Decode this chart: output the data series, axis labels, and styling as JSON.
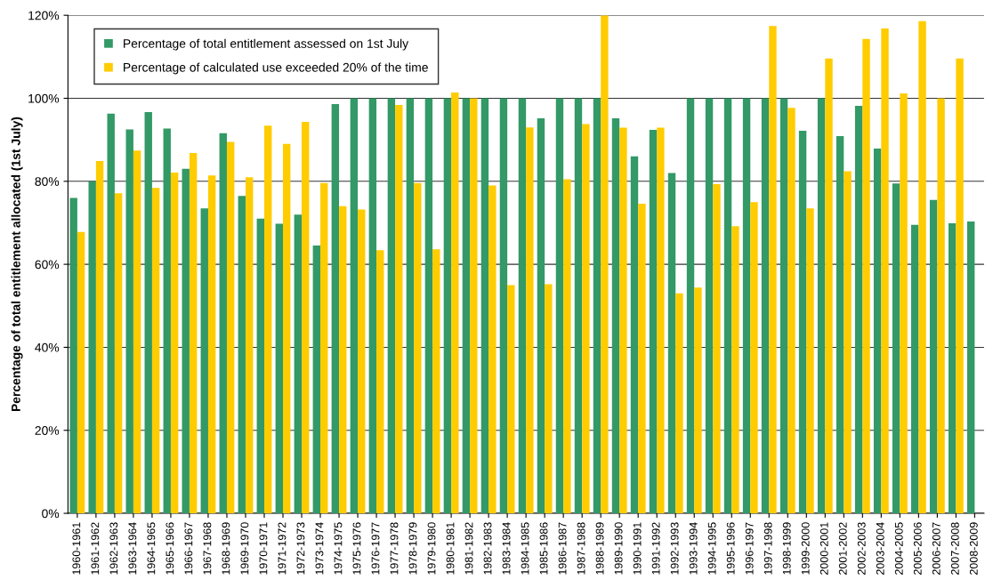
{
  "chart_data": {
    "type": "bar",
    "ylabel": "Percentage of total entitlement allocated (1st July)",
    "categories": [
      "1960-1961",
      "1961-1962",
      "1962-1963",
      "1963-1964",
      "1964-1965",
      "1965-1966",
      "1966-1967",
      "1967-1968",
      "1968-1969",
      "1969-1970",
      "1970-1971",
      "1971-1972",
      "1972-1973",
      "1973-1974",
      "1974-1975",
      "1975-1976",
      "1976-1977",
      "1977-1978",
      "1978-1979",
      "1979-1980",
      "1980-1981",
      "1981-1982",
      "1982-1983",
      "1983-1984",
      "1984-1985",
      "1985-1986",
      "1986-1987",
      "1987-1988",
      "1988-1989",
      "1989-1990",
      "1990-1991",
      "1991-1992",
      "1992-1993",
      "1993-1994",
      "1994-1995",
      "1995-1996",
      "1996-1997",
      "1997-1998",
      "1998-1999",
      "1999-2000",
      "2000-2001",
      "2001-2002",
      "2002-2003",
      "2003-2004",
      "2004-2005",
      "2005-2006",
      "2006-2007",
      "2007-2008",
      "2008-2009"
    ],
    "series": [
      {
        "name": "Percentage of total entitlement assessed on 1st July",
        "color": "#339966",
        "values": [
          76,
          80,
          96.3,
          92.5,
          96.7,
          92.7,
          83,
          73.5,
          91.6,
          76.5,
          71,
          69.8,
          72,
          64.5,
          98.6,
          100,
          100,
          100,
          100,
          100,
          100,
          100,
          100,
          100,
          100,
          95.2,
          100,
          100,
          100,
          95.2,
          86,
          92.4,
          82,
          100,
          100,
          100,
          100,
          100,
          100,
          92.2,
          100,
          90.9,
          98.2,
          87.9,
          79.5,
          69.5,
          75.5,
          69.9,
          70.3
        ]
      },
      {
        "name": "Percentage of calculated use exceeded 20% of the time",
        "color": "#ffcc00",
        "values": [
          67.8,
          84.9,
          77.1,
          87.4,
          78.4,
          82.1,
          86.8,
          81.4,
          89.5,
          81.0,
          93.4,
          89.0,
          94.3,
          79.6,
          74.0,
          73.2,
          63.4,
          98.4,
          79.6,
          63.6,
          101.4,
          100,
          79.0,
          55.0,
          93.0,
          55.2,
          80.5,
          93.8,
          120,
          92.9,
          74.6,
          92.9,
          53.0,
          54.4,
          79.3,
          69.2,
          75.0,
          117.4,
          97.7,
          73.5,
          109.6,
          82.4,
          114.3,
          116.8,
          101.2,
          118.6,
          100,
          109.6,
          null
        ]
      }
    ],
    "ylim": [
      0,
      120
    ],
    "yticks": [
      {
        "value": 0,
        "label": "0%"
      },
      {
        "value": 20,
        "label": "20%"
      },
      {
        "value": 40,
        "label": "40%"
      },
      {
        "value": 60,
        "label": "60%"
      },
      {
        "value": 80,
        "label": "80%"
      },
      {
        "value": 100,
        "label": "100%"
      },
      {
        "value": 120,
        "label": "120%"
      }
    ],
    "grid": "y",
    "legend": "top left"
  }
}
